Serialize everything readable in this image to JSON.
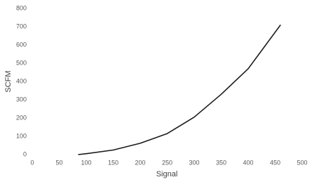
{
  "chart_data": {
    "type": "line",
    "x_label": "Signal",
    "y_label": "SCFM",
    "x": [
      85,
      100,
      150,
      200,
      250,
      300,
      350,
      400,
      460
    ],
    "values": [
      0,
      5,
      25,
      62,
      115,
      205,
      330,
      470,
      710
    ],
    "color": "#1a1a1a",
    "xlim": [
      0,
      500
    ],
    "xticks": [
      0,
      50,
      100,
      150,
      200,
      250,
      300,
      350,
      400,
      450,
      500
    ],
    "ylim": [
      0,
      800
    ],
    "yticks": [
      0,
      100,
      200,
      300,
      400,
      500,
      600,
      700,
      800
    ],
    "grid": false
  }
}
